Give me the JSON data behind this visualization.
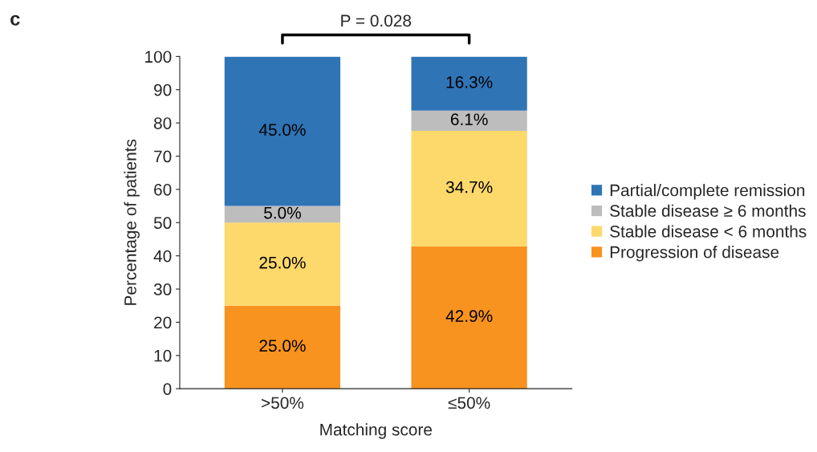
{
  "chart_data": {
    "type": "bar",
    "stacked": true,
    "xlabel": "Matching score",
    "ylabel": "Percentage of patients",
    "categories": [
      ">50%",
      "≤50%"
    ],
    "series": [
      {
        "name": "Progression of disease",
        "color": "#f7931e",
        "values": [
          25.0,
          42.9
        ],
        "value_labels": [
          "25.0%",
          "42.9%"
        ]
      },
      {
        "name": "Stable disease < 6 months",
        "color": "#fdd86b",
        "values": [
          25.0,
          34.7
        ],
        "value_labels": [
          "25.0%",
          "34.7%"
        ]
      },
      {
        "name": "Stable disease ≥ 6 months",
        "color": "#bdbdbd",
        "values": [
          5.0,
          6.1
        ],
        "value_labels": [
          "5.0%",
          "6.1%"
        ]
      },
      {
        "name": "Partial/complete remission",
        "color": "#2f74b5",
        "values": [
          45.0,
          16.3
        ],
        "value_labels": [
          "45.0%",
          "16.3%"
        ]
      }
    ],
    "ylim": [
      0,
      100
    ],
    "yticks": [
      0,
      10,
      20,
      30,
      40,
      50,
      60,
      70,
      80,
      90,
      100
    ],
    "legend": "right",
    "grid": false,
    "annotations": [
      "c",
      "P = 0.028"
    ]
  }
}
